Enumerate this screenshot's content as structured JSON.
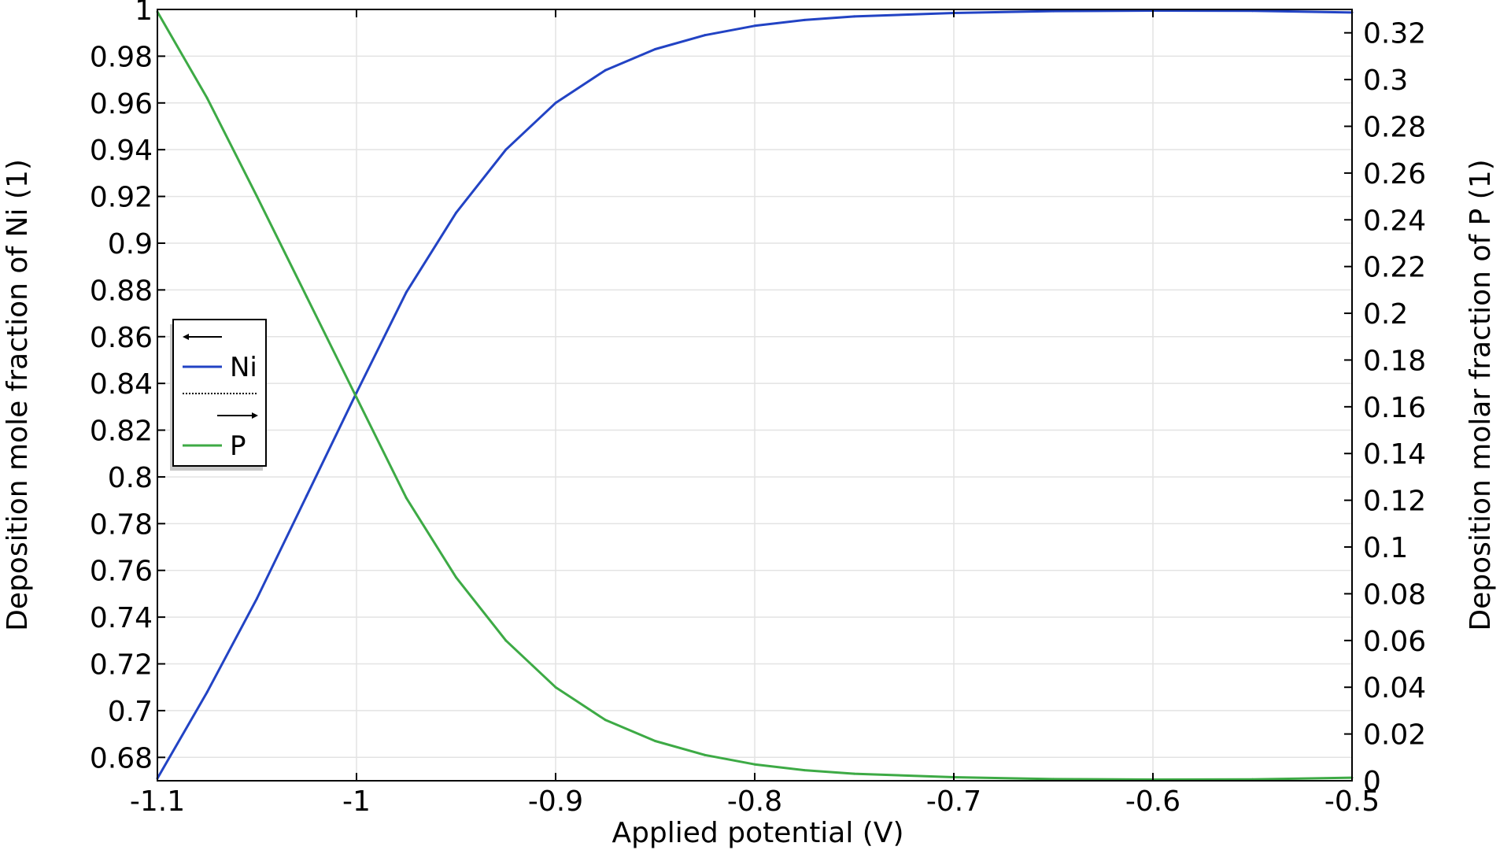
{
  "chart_data": {
    "type": "line",
    "title": "",
    "xlabel": "Applied potential (V)",
    "ylabel_left": "Deposition mole fraction of Ni (1)",
    "ylabel_right": "Deposition molar fraction of P (1)",
    "xlim": [
      -1.1,
      -0.5
    ],
    "ylim_left": [
      0.67,
      1.0
    ],
    "ylim_right": [
      0,
      0.33
    ],
    "grid": true,
    "legend_position": "left-middle",
    "x_ticks": [
      "-1.1",
      "-1",
      "-0.9",
      "-0.8",
      "-0.7",
      "-0.6",
      "-0.5"
    ],
    "y_left_ticks": [
      "0.68",
      "0.7",
      "0.72",
      "0.74",
      "0.76",
      "0.78",
      "0.8",
      "0.82",
      "0.84",
      "0.86",
      "0.88",
      "0.9",
      "0.92",
      "0.94",
      "0.96",
      "0.98",
      "1"
    ],
    "y_right_ticks": [
      "0",
      "0.02",
      "0.04",
      "0.06",
      "0.08",
      "0.1",
      "0.12",
      "0.14",
      "0.16",
      "0.18",
      "0.2",
      "0.22",
      "0.24",
      "0.26",
      "0.28",
      "0.3",
      "0.32"
    ],
    "x": [
      -1.1,
      -1.075,
      -1.05,
      -1.025,
      -1.0,
      -0.975,
      -0.95,
      -0.925,
      -0.9,
      -0.875,
      -0.85,
      -0.825,
      -0.8,
      -0.775,
      -0.75,
      -0.7,
      -0.65,
      -0.6,
      -0.55,
      -0.5
    ],
    "series": [
      {
        "name": "Ni",
        "axis": "left",
        "color": "#2243c4",
        "values": [
          0.671,
          0.708,
          0.748,
          0.792,
          0.836,
          0.879,
          0.913,
          0.94,
          0.96,
          0.974,
          0.983,
          0.989,
          0.993,
          0.9955,
          0.997,
          0.9985,
          0.9993,
          0.9995,
          0.9994,
          0.9987
        ]
      },
      {
        "name": "P",
        "axis": "right",
        "color": "#3daa45",
        "values": [
          0.329,
          0.292,
          0.25,
          0.207,
          0.164,
          0.121,
          0.087,
          0.06,
          0.04,
          0.026,
          0.017,
          0.011,
          0.007,
          0.0045,
          0.003,
          0.0015,
          0.0007,
          0.0005,
          0.0006,
          0.0013
        ]
      }
    ],
    "legend_entries": [
      {
        "label": "",
        "style": "arrow-left"
      },
      {
        "label": "Ni",
        "style": "line",
        "color": "#2243c4"
      },
      {
        "label": "",
        "style": "dotted"
      },
      {
        "label": "",
        "style": "arrow-right"
      },
      {
        "label": "P",
        "style": "line",
        "color": "#3daa45"
      }
    ]
  }
}
